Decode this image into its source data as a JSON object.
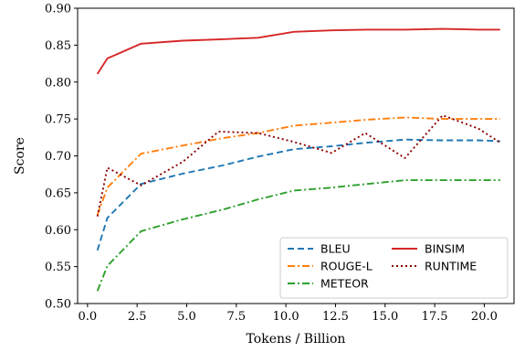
{
  "chart_data": {
    "type": "line",
    "xlabel": "Tokens / Billion",
    "ylabel": "Score",
    "xlim": [
      -0.5,
      21.5
    ],
    "ylim": [
      0.5,
      0.9
    ],
    "xticks": [
      "0.0",
      "2.5",
      "5.0",
      "7.5",
      "10.0",
      "12.5",
      "15.0",
      "17.5",
      "20.0"
    ],
    "yticks": [
      "0.50",
      "0.55",
      "0.60",
      "0.65",
      "0.70",
      "0.75",
      "0.80",
      "0.85",
      "0.90"
    ],
    "grid": false,
    "legend": {
      "placement": "lower-right",
      "columns": 2
    },
    "series": [
      {
        "name": "BLEU",
        "color": "#1f77b4",
        "style": "dashed",
        "x": [
          0.5,
          1.0,
          2.7,
          4.8,
          6.8,
          8.6,
          10.4,
          12.3,
          14.1,
          16.0,
          17.9,
          19.7,
          20.8
        ],
        "y": [
          0.572,
          0.616,
          0.662,
          0.676,
          0.687,
          0.699,
          0.709,
          0.713,
          0.718,
          0.722,
          0.721,
          0.721,
          0.72
        ]
      },
      {
        "name": "ROUGE-L",
        "color": "#ff7f0e",
        "style": "dashdot",
        "x": [
          0.5,
          1.0,
          2.7,
          4.8,
          6.8,
          8.6,
          10.4,
          12.3,
          14.1,
          16.0,
          17.9,
          19.7,
          20.8
        ],
        "y": [
          0.62,
          0.657,
          0.703,
          0.714,
          0.724,
          0.731,
          0.741,
          0.745,
          0.749,
          0.752,
          0.75,
          0.75,
          0.75
        ]
      },
      {
        "name": "METEOR",
        "color": "#2ca02c",
        "style": "dashdot",
        "x": [
          0.5,
          1.0,
          2.7,
          4.8,
          6.8,
          8.6,
          10.4,
          12.3,
          14.1,
          16.0,
          17.9,
          19.7,
          20.8
        ],
        "y": [
          0.517,
          0.551,
          0.598,
          0.614,
          0.627,
          0.641,
          0.653,
          0.657,
          0.662,
          0.667,
          0.667,
          0.667,
          0.667
        ]
      },
      {
        "name": "BINSIM",
        "color": "#d62728",
        "style": "solid",
        "x": [
          0.5,
          1.0,
          2.7,
          4.8,
          6.8,
          8.6,
          10.4,
          12.3,
          14.1,
          16.0,
          17.9,
          19.7,
          20.8
        ],
        "y": [
          0.811,
          0.832,
          0.852,
          0.856,
          0.858,
          0.86,
          0.868,
          0.87,
          0.871,
          0.871,
          0.872,
          0.871,
          0.871
        ]
      },
      {
        "name": "RUNTIME",
        "color": "#8b0000",
        "style": "dotted",
        "x": [
          0.5,
          1.0,
          2.7,
          4.8,
          6.6,
          8.6,
          10.4,
          12.3,
          14.0,
          16.0,
          17.9,
          19.7,
          20.8
        ],
        "y": [
          0.618,
          0.684,
          0.66,
          0.692,
          0.733,
          0.731,
          0.719,
          0.704,
          0.731,
          0.697,
          0.755,
          0.737,
          0.718
        ]
      }
    ]
  }
}
